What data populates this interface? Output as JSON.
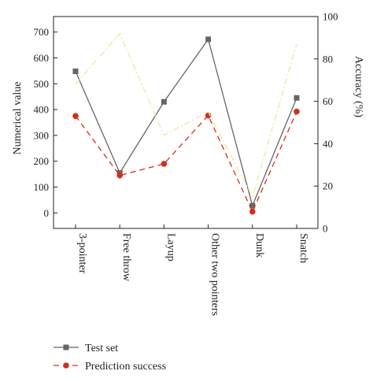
{
  "chart_data": {
    "type": "line",
    "categories": [
      "3-pointer",
      "Free throw",
      "Layup",
      "Other two pointers",
      "Dunk",
      "Snatch"
    ],
    "series": [
      {
        "name": "Test set",
        "axis": "left",
        "values": [
          548,
          155,
          430,
          672,
          28,
          445
        ],
        "color": "#666666",
        "style": "solid",
        "marker": "square"
      },
      {
        "name": "Prediction success",
        "axis": "left",
        "values": [
          375,
          145,
          190,
          377,
          5,
          392
        ],
        "color": "#d0301e",
        "style": "dashed",
        "marker": "circle"
      },
      {
        "axis": "right",
        "values": [
          68,
          92,
          44,
          55,
          15,
          87
        ],
        "color": "#e8e8a0",
        "style": "dashdot",
        "marker": "none"
      }
    ],
    "ylabel": "Numerical value",
    "ylabel_right": "Accuracy (%)",
    "ylim": [
      -60,
      760
    ],
    "ylim_right": [
      0,
      100
    ],
    "yticks": [
      0,
      100,
      200,
      300,
      400,
      500,
      600,
      700
    ],
    "yticks_right": [
      0,
      20,
      40,
      60,
      80,
      100
    ],
    "grid": false,
    "legend_position": "bottom-left"
  }
}
